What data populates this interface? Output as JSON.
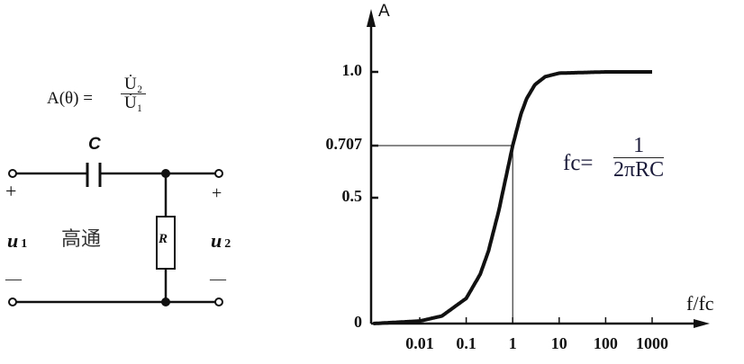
{
  "circuit": {
    "formula_lhs": "A(θ) =",
    "formula_num": "U̇₂",
    "formula_den": "U̇₁",
    "capacitor_label": "C",
    "resistor_label": "R",
    "input_label": "u",
    "input_sub": "1",
    "output_label": "u",
    "output_sub": "2",
    "plus": "+",
    "minus": "—",
    "filter_type": "高通"
  },
  "chart_data": {
    "type": "line",
    "title": "",
    "xlabel": "f/fc",
    "ylabel": "A",
    "x_scale": "log",
    "x_ticks": [
      "0.01",
      "0.1",
      "1",
      "10",
      "100",
      "1000"
    ],
    "y_ticks": [
      "0",
      "0.5",
      "0.707",
      "1.0"
    ],
    "ylim": [
      0,
      1.0
    ],
    "xlim": [
      0.001,
      1000
    ],
    "grid": false,
    "series": [
      {
        "x": [
          0.001,
          0.01,
          0.03,
          0.1,
          0.2,
          0.3,
          0.5,
          0.7,
          1,
          1.5,
          2,
          3,
          5,
          10,
          100,
          1000
        ],
        "y": [
          0,
          0.01,
          0.03,
          0.1,
          0.196,
          0.287,
          0.447,
          0.573,
          0.707,
          0.832,
          0.894,
          0.949,
          0.981,
          0.995,
          1.0,
          1.0
        ]
      }
    ],
    "annotation": {
      "cutoff_x": 1,
      "cutoff_y": 0.707
    },
    "formula_lhs": "fc=",
    "formula_num": "1",
    "formula_den": "2πRC"
  }
}
